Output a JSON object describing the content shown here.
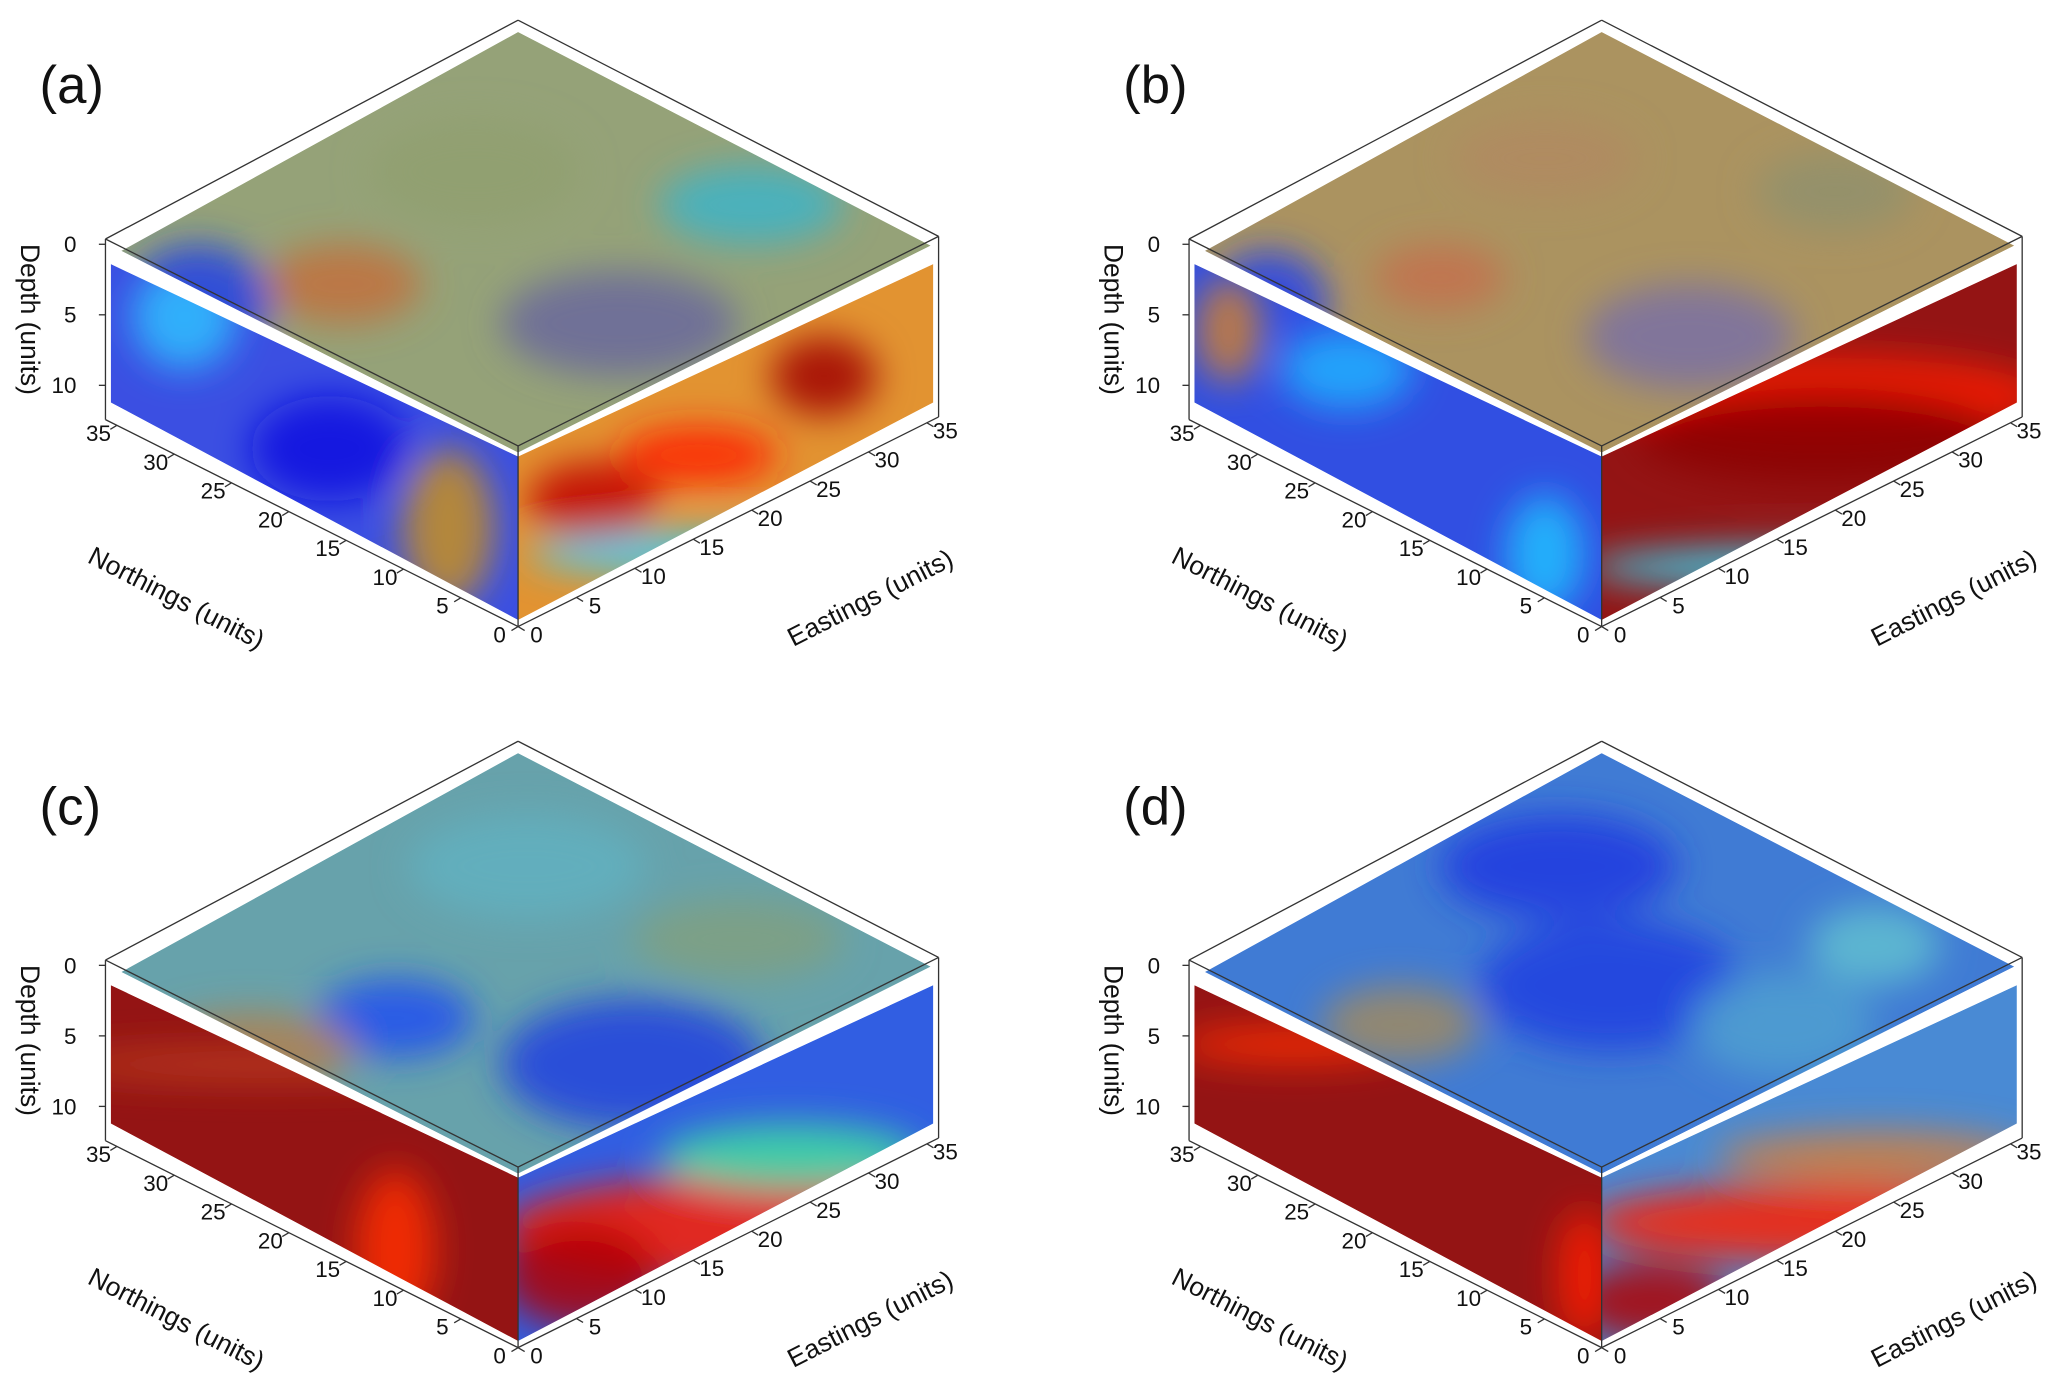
{
  "figure": {
    "panels": [
      {
        "label": "(a)"
      },
      {
        "label": "(b)"
      },
      {
        "label": "(c)"
      },
      {
        "label": "(d)"
      }
    ]
  },
  "chart_data": [
    {
      "panel": "(a)",
      "type": "heatmap",
      "xlabel": "Eastings (units)",
      "ylabel": "Northings (units)",
      "zlabel": "Depth (units)",
      "xticks": [
        0,
        5,
        10,
        15,
        20,
        25,
        30,
        35
      ],
      "yticks": [
        0,
        5,
        10,
        15,
        20,
        25,
        30,
        35
      ],
      "zticks": [
        0,
        5,
        10
      ],
      "xlim": [
        0,
        36
      ],
      "ylim": [
        0,
        36
      ],
      "zlim": [
        0,
        12.5
      ],
      "grid": false,
      "colormap": [
        "#00008b",
        "#0000ff",
        "#00ffff",
        "#00ff00",
        "#ffff00",
        "#ff0000",
        "#8b0000"
      ]
    },
    {
      "panel": "(b)",
      "type": "heatmap",
      "xlabel": "Eastings (units)",
      "ylabel": "Northings (units)",
      "zlabel": "Depth (units)",
      "xticks": [
        0,
        5,
        10,
        15,
        20,
        25,
        30,
        35
      ],
      "yticks": [
        0,
        5,
        10,
        15,
        20,
        25,
        30,
        35
      ],
      "zticks": [
        0,
        5,
        10
      ],
      "xlim": [
        0,
        36
      ],
      "ylim": [
        0,
        36
      ],
      "zlim": [
        0,
        12.5
      ],
      "grid": false,
      "colormap": [
        "#00008b",
        "#0000ff",
        "#00ffff",
        "#00ff00",
        "#ffff00",
        "#ff0000",
        "#8b0000"
      ]
    },
    {
      "panel": "(c)",
      "type": "heatmap",
      "xlabel": "Eastings (units)",
      "ylabel": "Northings (units)",
      "zlabel": "Depth (units)",
      "xticks": [
        0,
        5,
        10,
        15,
        20,
        25,
        30,
        35
      ],
      "yticks": [
        0,
        5,
        10,
        15,
        20,
        25,
        30,
        35
      ],
      "zticks": [
        0,
        5,
        10
      ],
      "xlim": [
        0,
        36
      ],
      "ylim": [
        0,
        36
      ],
      "zlim": [
        0,
        12.5
      ],
      "grid": false,
      "colormap": [
        "#00008b",
        "#0000ff",
        "#00ffff",
        "#00ff00",
        "#ffff00",
        "#ff0000",
        "#8b0000"
      ]
    },
    {
      "panel": "(d)",
      "type": "heatmap",
      "xlabel": "Eastings (units)",
      "ylabel": "Northings (units)",
      "zlabel": "Depth (units)",
      "xticks": [
        0,
        5,
        10,
        15,
        20,
        25,
        30,
        35
      ],
      "yticks": [
        0,
        5,
        10,
        15,
        20,
        25,
        30,
        35
      ],
      "zticks": [
        0,
        5,
        10
      ],
      "xlim": [
        0,
        36
      ],
      "ylim": [
        0,
        36
      ],
      "zlim": [
        0,
        12.5
      ],
      "grid": false,
      "colormap": [
        "#00008b",
        "#0000ff",
        "#00ffff",
        "#00ff00",
        "#ffff00",
        "#ff0000",
        "#8b0000"
      ]
    }
  ]
}
